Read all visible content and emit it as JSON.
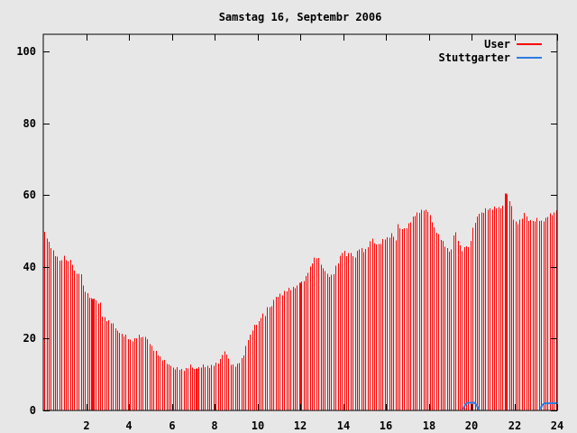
{
  "title": "Samstag 16, Septembr 2006",
  "colors": {
    "background": "#e7e7e7",
    "axis": "#000000",
    "text": "#000000",
    "user": "#ff0000",
    "stuttgarter": "#2a7de2"
  },
  "legend": {
    "entries": [
      {
        "label": "User",
        "series": "user"
      },
      {
        "label": "Stuttgarter",
        "series": "stuttgarter"
      }
    ]
  },
  "chart_data": {
    "type": "bar",
    "subtype": "impulses",
    "title": "Samstag 16, Septembr 2006",
    "xlabel": "",
    "ylabel": "",
    "xlim": [
      0,
      24
    ],
    "ylim": [
      0,
      104.8
    ],
    "x_ticks": [
      2,
      4,
      6,
      8,
      10,
      12,
      14,
      16,
      18,
      20,
      22,
      24
    ],
    "y_ticks": [
      0,
      20,
      40,
      60,
      80,
      100
    ],
    "grid": false,
    "legend_position": "top-right",
    "bars_per_hour": 10,
    "series": [
      {
        "name": "User",
        "type": "impulses",
        "envelope": [
          [
            0,
            50
          ],
          [
            0.1,
            49
          ],
          [
            0.25,
            46.5
          ],
          [
            0.4,
            45
          ],
          [
            0.55,
            43.5
          ],
          [
            0.7,
            42
          ],
          [
            0.85,
            41.5
          ],
          [
            0.95,
            43.5
          ],
          [
            1.1,
            41
          ],
          [
            1.3,
            42
          ],
          [
            1.45,
            38.5
          ],
          [
            1.65,
            38
          ],
          [
            1.75,
            38.5
          ],
          [
            1.85,
            34.5
          ],
          [
            2,
            32.5
          ],
          [
            2.15,
            31.8
          ],
          [
            2.3,
            31
          ],
          [
            2.5,
            30.3
          ],
          [
            2.65,
            29.5
          ],
          [
            2.75,
            26.4
          ],
          [
            2.95,
            25.4
          ],
          [
            3.15,
            24.3
          ],
          [
            3.35,
            23.3
          ],
          [
            3.55,
            21.3
          ],
          [
            3.8,
            20.8
          ],
          [
            4.05,
            19.6
          ],
          [
            4.25,
            19.8
          ],
          [
            4.5,
            20.9
          ],
          [
            4.7,
            20.4
          ],
          [
            4.9,
            19.4
          ],
          [
            5.1,
            16.9
          ],
          [
            5.3,
            16.3
          ],
          [
            5.5,
            14.2
          ],
          [
            5.75,
            13.4
          ],
          [
            6,
            11.8
          ],
          [
            6.4,
            11.5
          ],
          [
            6.7,
            11.5
          ],
          [
            6.9,
            12.8
          ],
          [
            7.05,
            11.5
          ],
          [
            7.2,
            11.6
          ],
          [
            7.35,
            12.3
          ],
          [
            7.7,
            12.3
          ],
          [
            8,
            12.6
          ],
          [
            8.2,
            13.8
          ],
          [
            8.35,
            15.2
          ],
          [
            8.5,
            16.8
          ],
          [
            8.6,
            15
          ],
          [
            8.7,
            13
          ],
          [
            8.9,
            12.6
          ],
          [
            9.1,
            12.9
          ],
          [
            9.3,
            14.6
          ],
          [
            9.45,
            18
          ],
          [
            9.6,
            20
          ],
          [
            9.75,
            22.6
          ],
          [
            9.9,
            23.8
          ],
          [
            10.05,
            24.8
          ],
          [
            10.2,
            26.9
          ],
          [
            10.35,
            26.4
          ],
          [
            10.5,
            29.3
          ],
          [
            10.65,
            29
          ],
          [
            10.8,
            31.3
          ],
          [
            11,
            32.2
          ],
          [
            11.1,
            31.8
          ],
          [
            11.25,
            33.2
          ],
          [
            11.4,
            34
          ],
          [
            11.55,
            33.6
          ],
          [
            11.8,
            34.6
          ],
          [
            12,
            35.5
          ],
          [
            12.25,
            37
          ],
          [
            12.45,
            40
          ],
          [
            12.6,
            42.2
          ],
          [
            12.75,
            42.5
          ],
          [
            12.9,
            41.8
          ],
          [
            13.1,
            38.8
          ],
          [
            13.3,
            37.6
          ],
          [
            13.5,
            37.2
          ],
          [
            13.65,
            40.2
          ],
          [
            13.85,
            42.8
          ],
          [
            14,
            44.5
          ],
          [
            14.15,
            43.4
          ],
          [
            14.3,
            44
          ],
          [
            14.5,
            42.4
          ],
          [
            14.65,
            44
          ],
          [
            14.8,
            45.5
          ],
          [
            15,
            44.3
          ],
          [
            15.2,
            46
          ],
          [
            15.35,
            48.3
          ],
          [
            15.5,
            45.8
          ],
          [
            15.7,
            46.3
          ],
          [
            15.9,
            47.6
          ],
          [
            16.1,
            48.4
          ],
          [
            16.3,
            49.3
          ],
          [
            16.45,
            47
          ],
          [
            16.55,
            52.3
          ],
          [
            16.7,
            50
          ],
          [
            16.9,
            50.8
          ],
          [
            17.1,
            52
          ],
          [
            17.3,
            54.5
          ],
          [
            17.5,
            55
          ],
          [
            17.65,
            55.5
          ],
          [
            17.8,
            56.3
          ],
          [
            17.95,
            55
          ],
          [
            18.1,
            53.8
          ],
          [
            18.25,
            50.5
          ],
          [
            18.45,
            49
          ],
          [
            18.6,
            47.5
          ],
          [
            18.75,
            45.7
          ],
          [
            18.9,
            44.5
          ],
          [
            19.05,
            44.8
          ],
          [
            19.2,
            50.3
          ],
          [
            19.3,
            48.6
          ],
          [
            19.45,
            45.5
          ],
          [
            19.6,
            44
          ],
          [
            19.7,
            46.8
          ],
          [
            19.85,
            45.2
          ],
          [
            19.95,
            47.3
          ],
          [
            20.1,
            52
          ],
          [
            20.25,
            54
          ],
          [
            20.45,
            55
          ],
          [
            20.7,
            56
          ],
          [
            21,
            56.5
          ],
          [
            21.25,
            56.3
          ],
          [
            21.45,
            57
          ],
          [
            21.6,
            60.5
          ],
          [
            21.7,
            59.3
          ],
          [
            21.8,
            58
          ],
          [
            21.95,
            53.3
          ],
          [
            22.1,
            52.2
          ],
          [
            22.3,
            53
          ],
          [
            22.5,
            55.2
          ],
          [
            22.65,
            52.8
          ],
          [
            22.85,
            52.6
          ],
          [
            23.05,
            53.2
          ],
          [
            23.25,
            52.8
          ],
          [
            23.45,
            53.4
          ],
          [
            23.6,
            54.3
          ],
          [
            23.8,
            55
          ],
          [
            23.95,
            55.5
          ]
        ],
        "solid_spikes": [
          [
            2.3,
            31
          ],
          [
            7.17,
            11.6
          ],
          [
            12.02,
            35.5
          ],
          [
            21.58,
            60.5
          ]
        ]
      },
      {
        "name": "Stuttgarter",
        "type": "line",
        "segments": [
          [
            [
              19.6,
              0.3
            ],
            [
              19.7,
              1.5
            ],
            [
              19.8,
              2.1
            ],
            [
              20.15,
              2.1
            ],
            [
              20.25,
              1.3
            ],
            [
              20.35,
              0.3
            ]
          ],
          [
            [
              23.22,
              0.4
            ],
            [
              23.3,
              1.5
            ],
            [
              23.42,
              2.0
            ],
            [
              24,
              2.0
            ]
          ]
        ]
      }
    ]
  },
  "render_hints": {
    "bar_jitter_pattern": [
      0.2,
      -0.3,
      0.5,
      -0.2,
      0.1,
      -0.5,
      0.3,
      -0.1,
      0.4,
      -0.4,
      0,
      0.3
    ]
  }
}
